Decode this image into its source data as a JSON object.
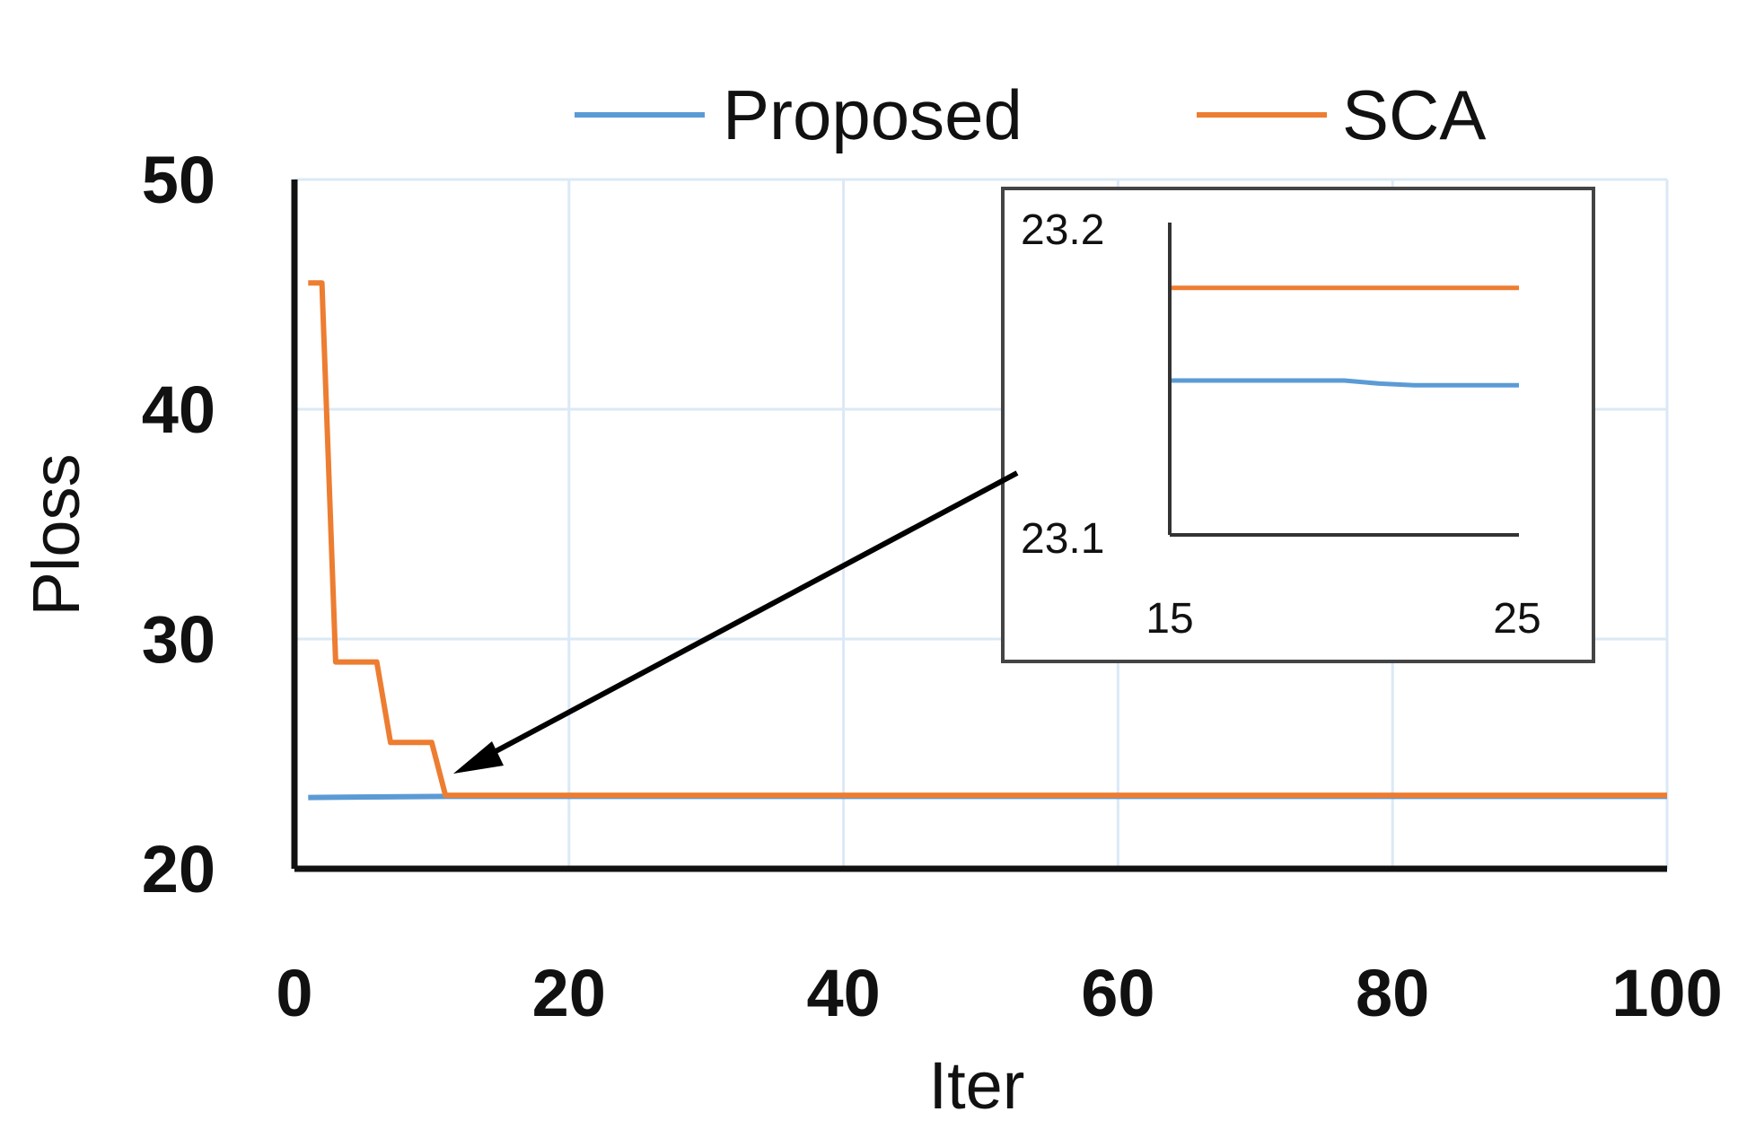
{
  "colors": {
    "proposed": "#5b9bd5",
    "sca": "#ed7d31",
    "grid": "#dbe9f6",
    "axis": "#111111",
    "arrow": "#000000"
  },
  "chart_data": {
    "type": "line",
    "xlabel": "Iter",
    "ylabel": "Ploss",
    "xlim": [
      0,
      100
    ],
    "ylim": [
      20,
      50
    ],
    "xticks": [
      "0",
      "20",
      "40",
      "60",
      "80",
      "100"
    ],
    "yticks": [
      "20",
      "30",
      "40",
      "50"
    ],
    "grid": true,
    "legend_position": "top",
    "series": [
      {
        "name": "Proposed",
        "x": [
          1,
          11,
          100
        ],
        "y": [
          23.1,
          23.15,
          23.15
        ]
      },
      {
        "name": "SCA",
        "x": [
          1,
          2,
          3,
          6,
          7,
          10,
          11,
          100
        ],
        "y": [
          45.5,
          45.5,
          29,
          29,
          25.5,
          25.5,
          23.2,
          23.2
        ]
      }
    ],
    "inset": {
      "xlim": [
        15,
        25
      ],
      "ylim": [
        23.1,
        23.2
      ],
      "xticks": [
        "15",
        "25"
      ],
      "yticks": [
        "23.2",
        "23.1"
      ],
      "series": [
        {
          "name": "Proposed",
          "x": [
            15,
            16,
            17,
            18,
            19,
            20,
            21,
            22,
            23,
            24,
            25
          ],
          "y": [
            23.15,
            23.15,
            23.15,
            23.15,
            23.15,
            23.15,
            23.149,
            23.1485,
            23.1485,
            23.1485,
            23.1485
          ]
        },
        {
          "name": "SCA",
          "x": [
            15,
            25
          ],
          "y": [
            23.18,
            23.18
          ]
        }
      ]
    }
  }
}
